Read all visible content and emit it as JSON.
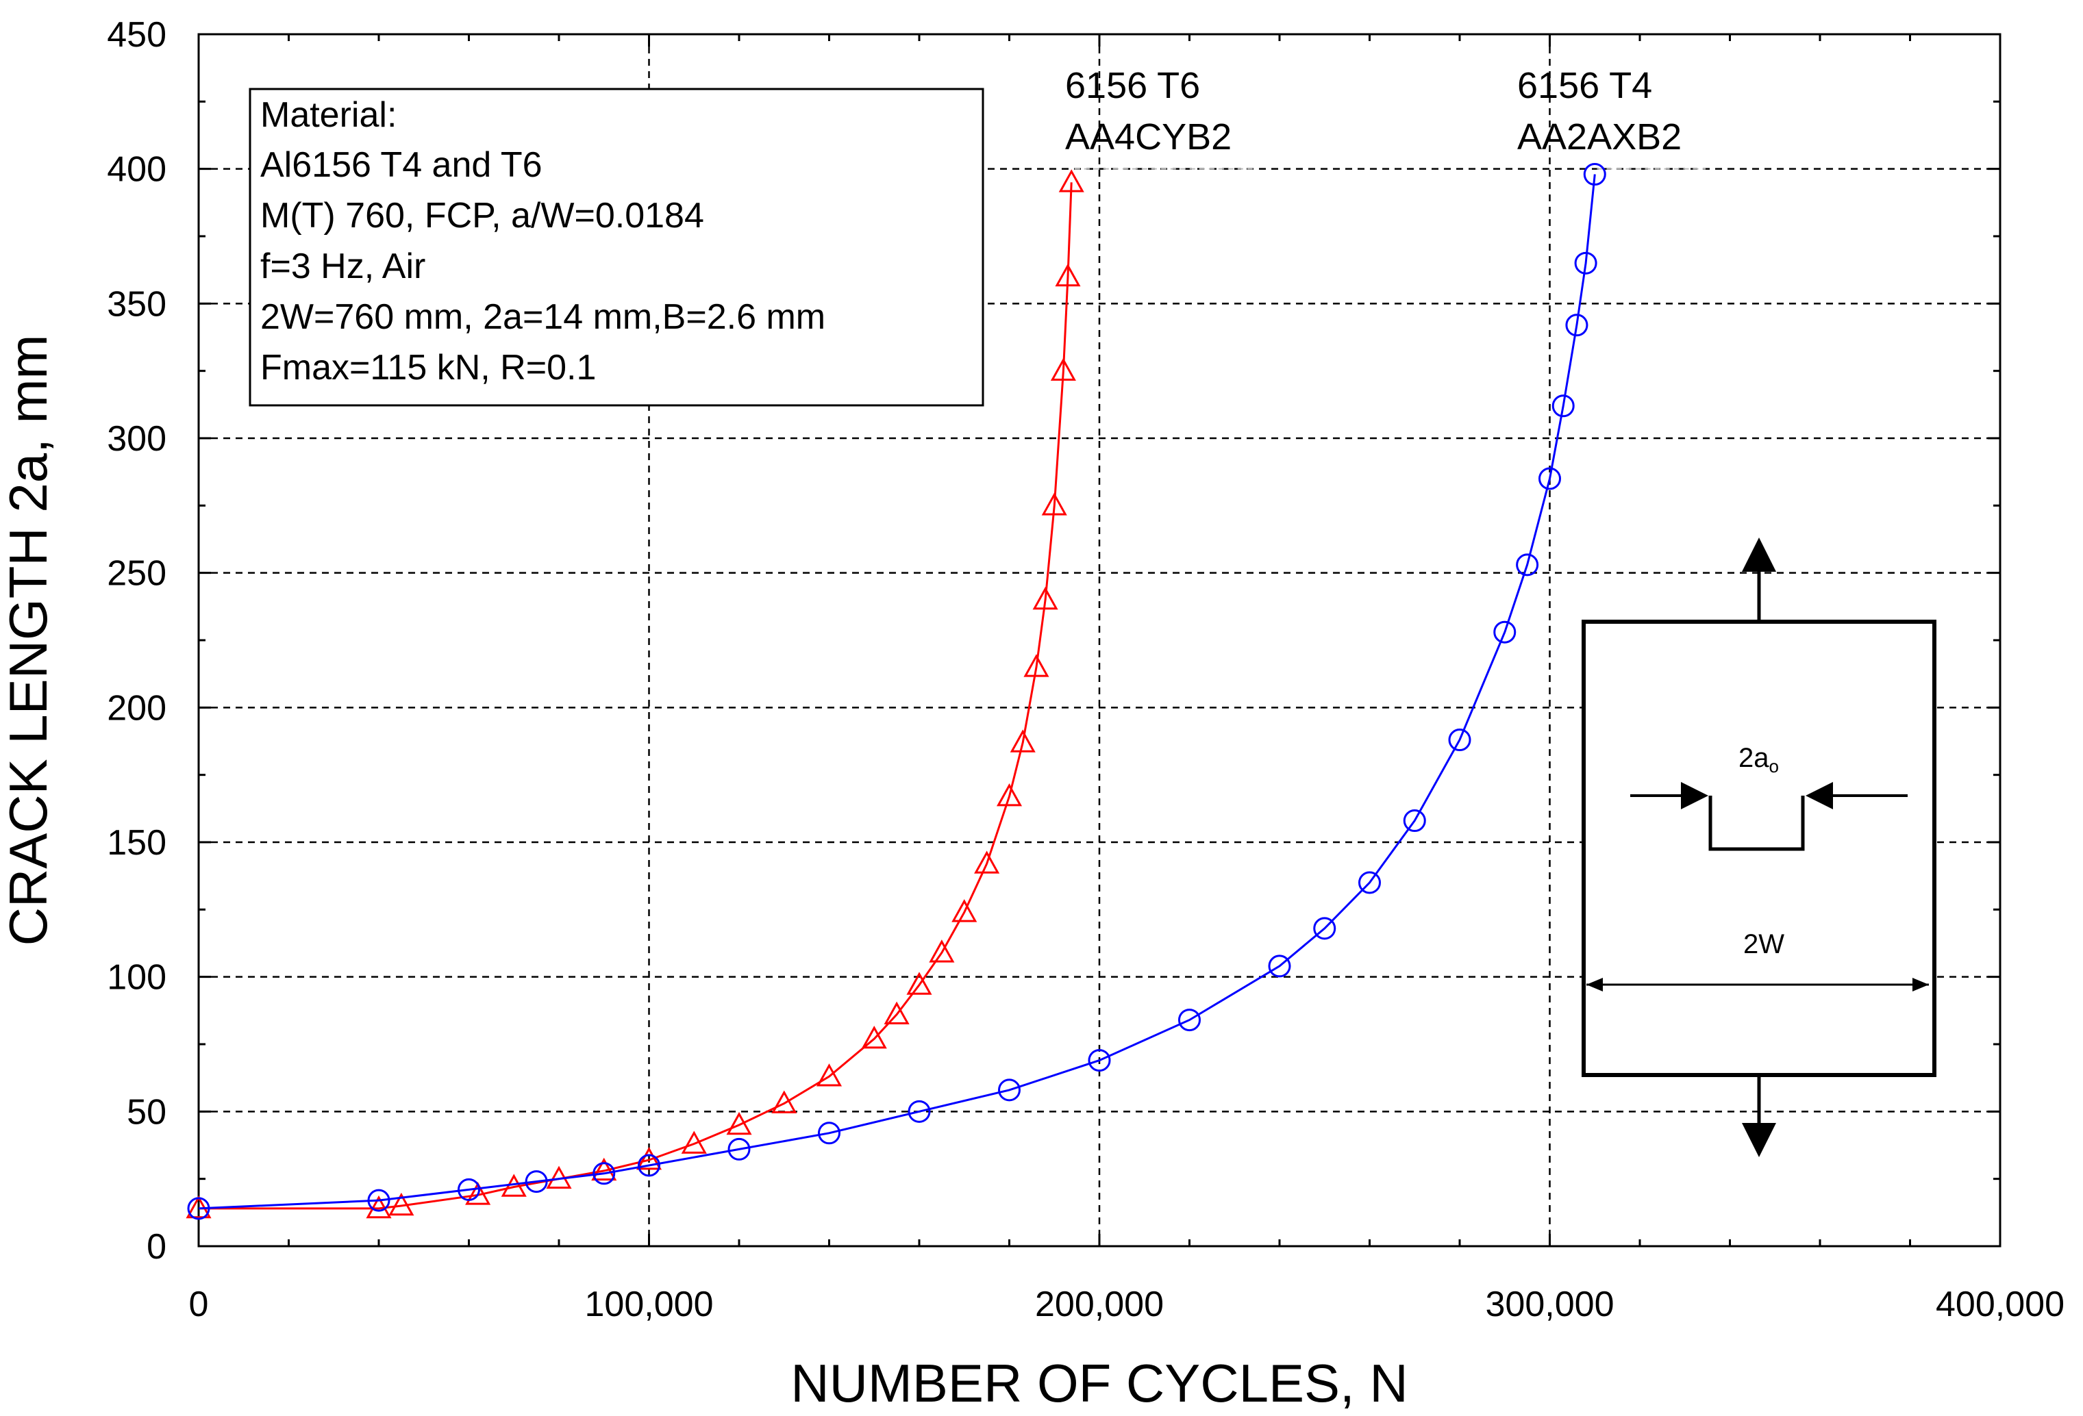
{
  "chart_data": {
    "type": "scatter",
    "xlabel": "NUMBER OF CYCLES, N",
    "ylabel": "CRACK LENGTH 2a, mm",
    "xlim": [
      0,
      400000
    ],
    "ylim": [
      0,
      450
    ],
    "xticks": [
      0,
      100000,
      200000,
      300000,
      400000
    ],
    "xtick_labels": [
      "0",
      "100,000",
      "200,000",
      "300,000",
      "400,000"
    ],
    "yticks": [
      0,
      50,
      100,
      150,
      200,
      250,
      300,
      350,
      400,
      450
    ],
    "ytick_labels": [
      "0",
      "50",
      "100",
      "150",
      "200",
      "250",
      "300",
      "350",
      "400",
      "450"
    ],
    "grid": true,
    "info_box": [
      "Material:",
      "Al6156 T4 and T6",
      "M(T) 760, FCP,  a/W=0.0184",
      "f=3 Hz,  Air",
      "2W=760 mm, 2a=14 mm,B=2.6 mm",
      "Fmax=115 kN,    R=0.1"
    ],
    "series": [
      {
        "name": "6156 T6",
        "specimen": "AA4CYB2",
        "color": "#ff0000",
        "marker": "triangle",
        "x": [
          0,
          40000,
          45000,
          62000,
          70000,
          80000,
          90000,
          100000,
          110000,
          120000,
          130000,
          140000,
          150000,
          155000,
          160000,
          165000,
          170000,
          175000,
          180000,
          183000,
          186000,
          188000,
          190000,
          192000,
          193000,
          193800
        ],
        "y": [
          14,
          14,
          15,
          19,
          22,
          25,
          28,
          32,
          38,
          45,
          53,
          63,
          77,
          86,
          97,
          109,
          124,
          142,
          167,
          187,
          215,
          240,
          275,
          325,
          360,
          395
        ]
      },
      {
        "name": "6156 T4",
        "specimen": "AA2AXB2",
        "color": "#0000ff",
        "marker": "circle",
        "x": [
          0,
          40000,
          60000,
          75000,
          90000,
          100000,
          120000,
          140000,
          160000,
          180000,
          200000,
          220000,
          240000,
          250000,
          260000,
          270000,
          280000,
          290000,
          295000,
          300000,
          303000,
          306000,
          308000,
          310000
        ],
        "y": [
          14,
          17,
          21,
          24,
          27,
          30,
          36,
          42,
          50,
          58,
          69,
          84,
          104,
          118,
          135,
          158,
          188,
          228,
          253,
          285,
          312,
          342,
          365,
          398
        ]
      }
    ],
    "annotations": [
      {
        "series": "6156 T6",
        "line1": "6156 T6",
        "line2": "AA4CYB2"
      },
      {
        "series": "6156 T4",
        "line1": "6156 T4",
        "line2": "AA2AXB2"
      }
    ],
    "inset_specimen": {
      "crack_label": "2a",
      "crack_label_sub": "o",
      "width_label": "2W"
    }
  }
}
